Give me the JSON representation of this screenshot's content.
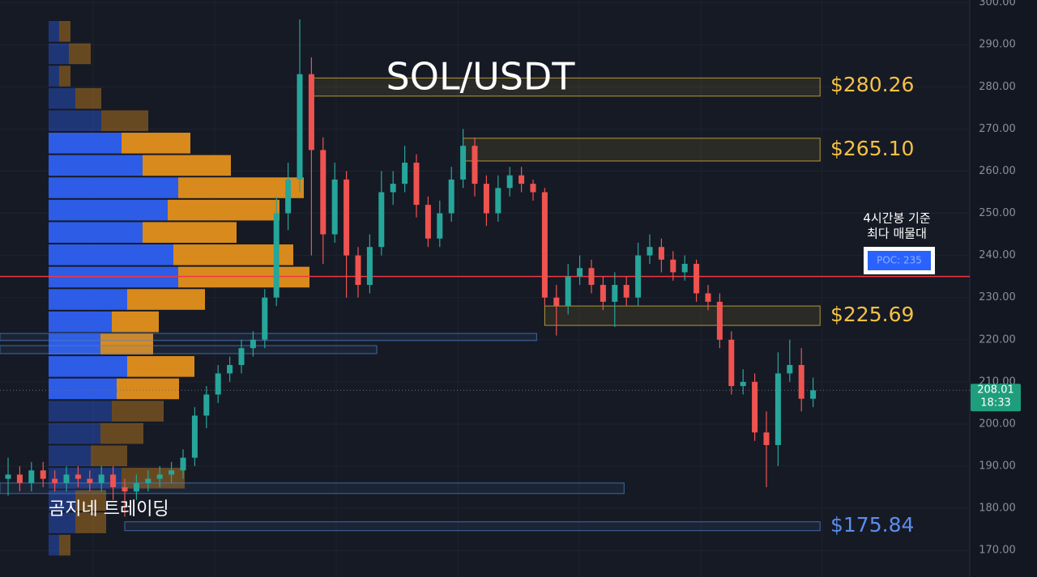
{
  "chart_data": {
    "type": "candlestick",
    "title": "SOL/USDT",
    "watermark": "곰지네 트레이딩",
    "ylim": [
      163.7,
      300.6
    ],
    "yticks": [
      {
        "value": 300,
        "label": "300.00"
      },
      {
        "value": 290,
        "label": "290.00"
      },
      {
        "value": 280,
        "label": "280.00"
      },
      {
        "value": 270,
        "label": "270.00"
      },
      {
        "value": 260,
        "label": "260.00"
      },
      {
        "value": 250,
        "label": "250.00"
      },
      {
        "value": 240,
        "label": "240.00"
      },
      {
        "value": 230,
        "label": "230.00"
      },
      {
        "value": 220,
        "label": "220.00"
      },
      {
        "value": 210,
        "label": "210.00"
      },
      {
        "value": 200,
        "label": "200.00"
      },
      {
        "value": 190,
        "label": "190.00"
      },
      {
        "value": 180,
        "label": "180.00"
      },
      {
        "value": 170,
        "label": "170.00"
      }
    ],
    "grid": true,
    "up_color": "#26a69a",
    "down_color": "#ef5350",
    "open": [
      187,
      188,
      186,
      189,
      187,
      186,
      188,
      187,
      186,
      188,
      185,
      184,
      186,
      187,
      188,
      189,
      192,
      202,
      207,
      212,
      214,
      218,
      220,
      230,
      250,
      258,
      283,
      265,
      245,
      258,
      240,
      233,
      242,
      255,
      257,
      262,
      252,
      244,
      250,
      258,
      266,
      257,
      250,
      256,
      259,
      257,
      255,
      230,
      228,
      235,
      237,
      233,
      229,
      233,
      230,
      240,
      242,
      239,
      236,
      238,
      231,
      229,
      220,
      209,
      210,
      198,
      195,
      212,
      214,
      206
    ],
    "high": [
      192,
      190,
      191,
      191,
      189,
      190,
      190,
      189,
      190,
      190,
      187,
      188,
      189,
      190,
      191,
      194,
      204,
      209,
      214,
      216,
      220,
      222,
      232,
      254,
      262,
      296,
      287,
      268,
      262,
      260,
      242,
      245,
      260,
      260,
      266,
      264,
      254,
      253,
      261,
      270,
      268,
      259,
      259,
      261,
      261,
      258,
      256,
      233,
      238,
      240,
      239,
      235,
      236,
      235,
      243,
      245,
      244,
      241,
      240,
      239,
      233,
      231,
      222,
      213,
      212,
      203,
      217,
      220,
      218,
      211
    ],
    "low": [
      183,
      184,
      184,
      185,
      184,
      184,
      185,
      184,
      184,
      182,
      178,
      182,
      184,
      185,
      186,
      187,
      190,
      199,
      205,
      210,
      212,
      216,
      218,
      228,
      246,
      255,
      240,
      238,
      243,
      230,
      230,
      231,
      240,
      252,
      255,
      249,
      242,
      242,
      248,
      256,
      254,
      247,
      248,
      254,
      255,
      253,
      228,
      221,
      226,
      233,
      231,
      227,
      223,
      228,
      228,
      238,
      236,
      234,
      234,
      229,
      227,
      218,
      207,
      207,
      196,
      185,
      190,
      210,
      203,
      204
    ],
    "close": [
      188,
      186,
      189,
      187,
      186,
      188,
      187,
      186,
      188,
      185,
      184,
      186,
      187,
      188,
      189,
      192,
      202,
      207,
      212,
      214,
      218,
      220,
      230,
      250,
      258,
      283,
      265,
      245,
      258,
      240,
      233,
      242,
      255,
      257,
      262,
      252,
      244,
      250,
      258,
      266,
      257,
      250,
      256,
      259,
      257,
      255,
      230,
      228,
      235,
      237,
      233,
      229,
      233,
      230,
      240,
      242,
      239,
      236,
      238,
      231,
      229,
      220,
      209,
      210,
      198,
      195,
      212,
      214,
      206,
      208
    ],
    "volume_profile": {
      "edges": [
        295.8,
        290.5,
        285.2,
        279.9,
        274.6,
        269.3,
        264.0,
        258.7,
        253.4,
        248.1,
        242.8,
        237.5,
        232.2,
        226.9,
        221.6,
        216.3,
        211.0,
        205.7,
        200.4,
        195.1,
        189.8,
        184.5,
        179.2,
        173.9,
        168.6
      ],
      "buy": [
        13,
        25,
        13,
        33,
        65,
        90,
        116,
        160,
        147,
        116,
        154,
        160,
        97,
        78,
        64,
        97,
        84,
        78,
        64,
        52,
        90,
        33,
        33,
        13
      ],
      "sell": [
        14,
        27,
        14,
        32,
        58,
        85,
        109,
        155,
        138,
        116,
        148,
        162,
        96,
        58,
        65,
        83,
        77,
        64,
        53,
        45,
        78,
        38,
        38,
        14
      ],
      "buy_color": "#2d5ce6",
      "sell_color": "#d98a1c",
      "value_area": [
        205.7,
        269.3
      ]
    },
    "zones": [
      {
        "range": [
          277.8,
          282.1
        ],
        "span": [
          26,
          69.6
        ],
        "label": "$280.26",
        "value": 280.26,
        "color": "#e6be3c",
        "label_color": "#f5c242"
      },
      {
        "range": [
          262.4,
          267.8
        ],
        "span": [
          39,
          69.6
        ],
        "label": "$265.10",
        "value": 265.1,
        "color": "#e6be3c",
        "label_color": "#f5c242"
      },
      {
        "range": [
          223.4,
          228.0
        ],
        "span": [
          46,
          69.6
        ],
        "label": "$225.69",
        "value": 225.69,
        "color": "#e6be3c",
        "label_color": "#f5c242"
      },
      {
        "range": [
          174.7,
          176.8
        ],
        "span": [
          10,
          69.6
        ],
        "label": "$175.84",
        "value": 175.84,
        "color": "#4f82c8",
        "label_color": "#5b8def"
      },
      {
        "range": [
          219.8,
          221.5
        ],
        "span": [
          -0.7,
          45.3
        ],
        "color": "#4f82c8"
      },
      {
        "range": [
          216.7,
          218.6
        ],
        "span": [
          -0.7,
          31.6
        ],
        "color": "#4f82c8"
      },
      {
        "range": [
          183.5,
          186.0
        ],
        "span": [
          -0.7,
          52.8
        ],
        "color": "#4f82c8"
      }
    ],
    "poc": {
      "value": 235,
      "label": "POC: 235",
      "note": [
        "4시간봉 기준",
        "최다 매물대"
      ],
      "color": "#f23645"
    },
    "last_price": {
      "value": 208.01,
      "time": "18:33",
      "color": "#1e9e7c"
    }
  }
}
